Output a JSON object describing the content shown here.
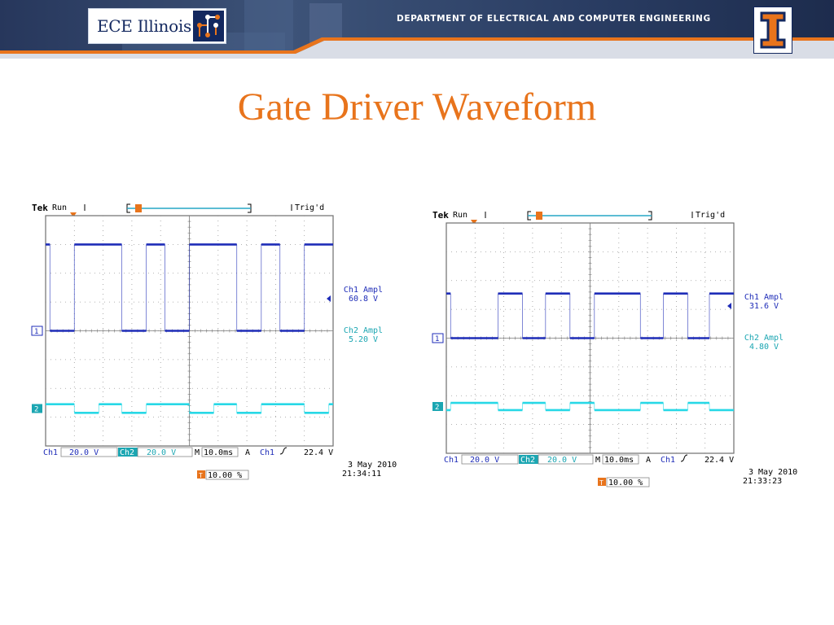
{
  "header": {
    "logo_text": "ECE Illinois",
    "department": "DEPARTMENT OF ELECTRICAL AND COMPUTER ENGINEERING"
  },
  "title": "Gate Driver Waveform",
  "colors": {
    "title": "#e8741c",
    "ch1": "#1f2db8",
    "ch2": "#27d8e6",
    "grid": "#7a7a7a"
  },
  "chart_data": [
    {
      "type": "line",
      "title": "",
      "status": {
        "brand": "Tek",
        "mode": "Run",
        "trigger": "Trig'd"
      },
      "measurements": [
        {
          "label": "Ch1 Ampl",
          "value": "60.8 V"
        },
        {
          "label": "Ch2 Ampl",
          "value": "5.20 V"
        }
      ],
      "settings": {
        "ch1_label": "Ch1",
        "ch1_scale": "20.0 V",
        "ch2_label": "Ch2",
        "ch2_scale": "20.0 V",
        "m_label": "M",
        "time_scale": "10.0ms",
        "a_label": "A",
        "trig_source": "Ch1",
        "trig_level": "22.4 V",
        "trig_pos": "10.00 %"
      },
      "date": "3 May 2010",
      "time": "21:34:11",
      "markers": {
        "ch1": "1",
        "ch2": "2",
        "trigger": "T"
      },
      "x_range_div": [
        0,
        10
      ],
      "y_range_div": [
        -4,
        4
      ],
      "series": [
        {
          "channel": "ch1",
          "edges": [
            0.15,
            1.0,
            2.65,
            3.5,
            4.15,
            5.0,
            6.65,
            7.5,
            8.15,
            9.0
          ],
          "start_level": "high",
          "high_div": 3.0,
          "low_div": 0.0
        },
        {
          "channel": "ch2",
          "edges": [
            1.0,
            1.85,
            2.65,
            3.5,
            5.0,
            5.85,
            6.65,
            7.5,
            9.0,
            9.85
          ],
          "start_level": "high",
          "high_div": -2.55,
          "low_div": -2.85
        }
      ]
    },
    {
      "type": "line",
      "title": "",
      "status": {
        "brand": "Tek",
        "mode": "Run",
        "trigger": "Trig'd"
      },
      "measurements": [
        {
          "label": "Ch1 Ampl",
          "value": "31.6 V"
        },
        {
          "label": "Ch2 Ampl",
          "value": "4.80 V"
        }
      ],
      "settings": {
        "ch1_label": "Ch1",
        "ch1_scale": "20.0 V",
        "ch2_label": "Ch2",
        "ch2_scale": "20.0 V",
        "m_label": "M",
        "time_scale": "10.0ms",
        "a_label": "A",
        "trig_source": "Ch1",
        "trig_level": "22.4 V",
        "trig_pos": "10.00 %"
      },
      "date": "3 May 2010",
      "time": "21:33:23",
      "markers": {
        "ch1": "1",
        "ch2": "2",
        "trigger": "T"
      },
      "x_range_div": [
        0,
        10
      ],
      "y_range_div": [
        -4,
        4
      ],
      "series": [
        {
          "channel": "ch1",
          "edges": [
            0.15,
            1.8,
            2.65,
            3.45,
            4.3,
            5.15,
            6.75,
            7.55,
            8.4,
            9.15
          ],
          "start_level": "high",
          "high_div": 1.55,
          "low_div": 0.0
        },
        {
          "channel": "ch2",
          "edges": [
            0.15,
            1.8,
            2.65,
            3.45,
            4.3,
            5.15,
            6.75,
            7.55,
            8.4,
            9.15
          ],
          "start_level": "low",
          "high_div": -2.25,
          "low_div": -2.5
        }
      ]
    }
  ]
}
